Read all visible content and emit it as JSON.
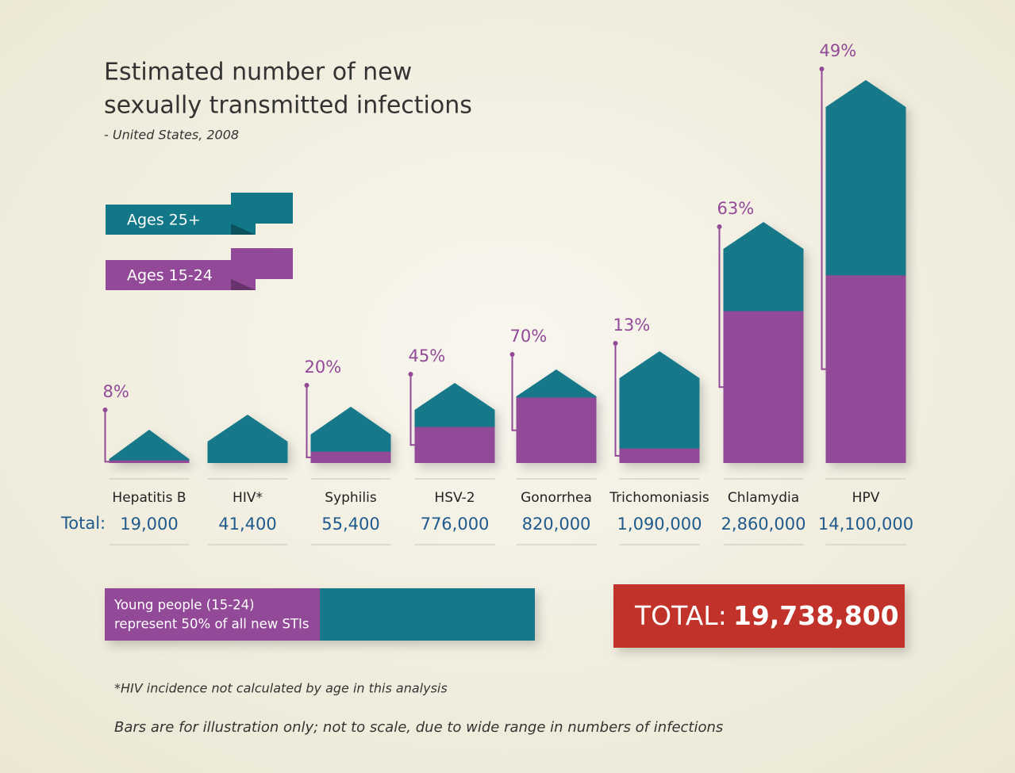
{
  "title_lines": [
    "Estimated number of new",
    "sexually transmitted infections"
  ],
  "subtitle": "- United States, 2008",
  "legend": [
    {
      "name": "Ages 25+",
      "color": "#127888"
    },
    {
      "name": "Ages 15-24",
      "color": "#924a98"
    }
  ],
  "chart_data": {
    "type": "bar",
    "categories": [
      "Hepatitis B",
      "HIV*",
      "Syphilis",
      "HSV-2",
      "Gonorrhea",
      "Trichomoniasis",
      "Chlamydia",
      "HPV"
    ],
    "series": [
      {
        "name": "Ages 15-24",
        "color": "#924a98",
        "values": [
          8,
          null,
          20,
          45,
          70,
          13,
          63,
          49
        ],
        "value_labels": [
          "8%",
          null,
          "20%",
          "45%",
          "70%",
          "13%",
          "63%",
          "49%"
        ]
      }
    ],
    "base_color": "#127888",
    "totals_label": "Total:",
    "totals": {
      "values": [
        19000,
        41400,
        55400,
        776000,
        820000,
        1090000,
        2860000,
        14100000
      ],
      "value_labels": [
        "19,000",
        "41,400",
        "55,400",
        "776,000",
        "820,000",
        "1,090,000",
        "2,860,000",
        "14,100,000"
      ]
    }
  },
  "summary": {
    "text_lines": [
      "Young people (15-24)",
      "represent 50% of all new STIs"
    ],
    "value": 50
  },
  "grand_total": {
    "label": "TOTAL:",
    "value": 19738800,
    "value_label": "19,738,800"
  },
  "footnotes": [
    "*HIV incidence not calculated by age in this analysis",
    "Bars are for illustration only; not to scale, due to wide range in numbers of infections"
  ]
}
